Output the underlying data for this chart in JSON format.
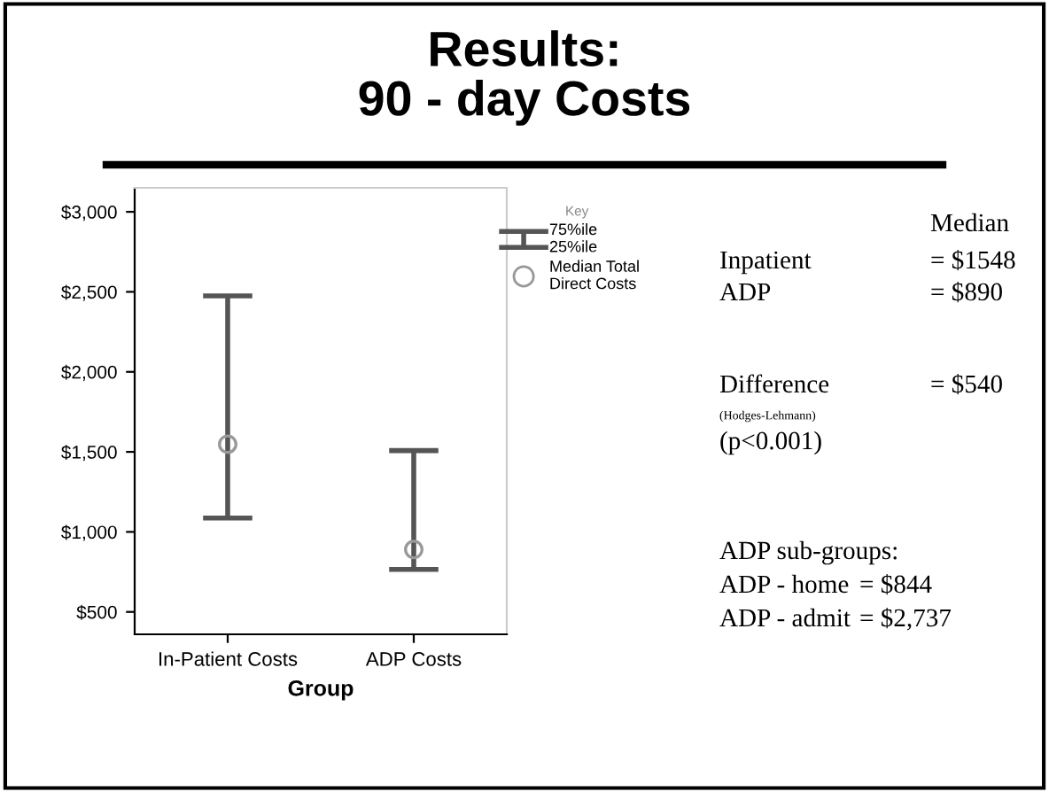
{
  "chart_data": {
    "type": "scatter",
    "title": "Results:\n90 - day Costs",
    "xlabel": "Group",
    "legend_title": "Key",
    "categories": [
      "In-Patient Costs",
      "ADP Costs"
    ],
    "series": [
      {
        "name": "Median Total\nDirect Costs",
        "color": "#999999",
        "values": [
          1548,
          890
        ],
        "errors": [
          [
            1087,
            2475
          ],
          [
            766,
            1508
          ]
        ]
      }
    ],
    "ylim": [
      360,
      3150
    ],
    "yticks": [
      {
        "value": 500,
        "label": "$500"
      },
      {
        "value": 1000,
        "label": "$1,000"
      },
      {
        "value": 1500,
        "label": "$1,500"
      },
      {
        "value": 2000,
        "label": "$2,000"
      },
      {
        "value": 2500,
        "label": "$2,500"
      },
      {
        "value": 3000,
        "label": "$3,000"
      }
    ],
    "marker": "circle",
    "legend": "top right",
    "grid": false,
    "annotations": [
      "75%ile\n25%ile",
      "Median",
      "Inpatient",
      "= $1548",
      "ADP",
      "= $890",
      "Difference",
      "= $540",
      "(Hodges-Lehmann)",
      "(p<0.001)",
      "ADP sub-groups:",
      "ADP - home",
      "= $844",
      "ADP - admit",
      "= $2,737"
    ]
  }
}
